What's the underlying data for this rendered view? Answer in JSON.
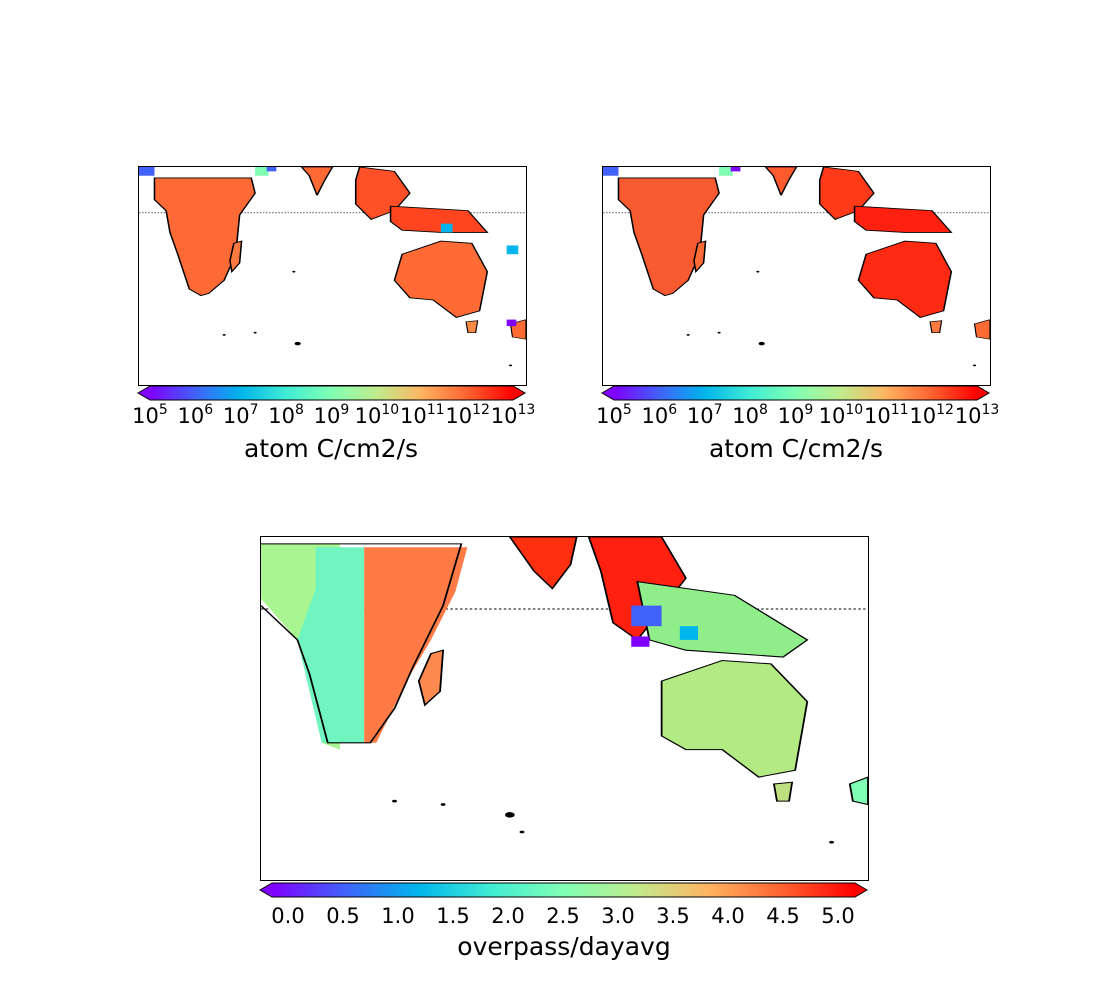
{
  "colors": {
    "colormap": [
      "#8000ff",
      "#4062fa",
      "#00b5eb",
      "#40ecd4",
      "#80ffb4",
      "#c0eb8d",
      "#ffb360",
      "#ff6230",
      "#ff0000"
    ],
    "land_outline": "#000000",
    "equator": "#000000"
  },
  "panels": [
    {
      "id": "top-left",
      "colorbar": {
        "scale": "log",
        "ticks": [
          {
            "base": "10",
            "exp": "5"
          },
          {
            "base": "10",
            "exp": "6"
          },
          {
            "base": "10",
            "exp": "7"
          },
          {
            "base": "10",
            "exp": "8"
          },
          {
            "base": "10",
            "exp": "9"
          },
          {
            "base": "10",
            "exp": "10"
          },
          {
            "base": "10",
            "exp": "11"
          },
          {
            "base": "10",
            "exp": "12"
          },
          {
            "base": "10",
            "exp": "13"
          }
        ],
        "label": "atom C/cm2/s",
        "extend": "both"
      }
    },
    {
      "id": "top-right",
      "colorbar": {
        "scale": "log",
        "ticks": [
          {
            "base": "10",
            "exp": "5"
          },
          {
            "base": "10",
            "exp": "6"
          },
          {
            "base": "10",
            "exp": "7"
          },
          {
            "base": "10",
            "exp": "8"
          },
          {
            "base": "10",
            "exp": "9"
          },
          {
            "base": "10",
            "exp": "10"
          },
          {
            "base": "10",
            "exp": "11"
          },
          {
            "base": "10",
            "exp": "12"
          },
          {
            "base": "10",
            "exp": "13"
          }
        ],
        "label": "atom C/cm2/s",
        "extend": "both"
      }
    },
    {
      "id": "bottom",
      "colorbar": {
        "scale": "linear",
        "ticks": [
          {
            "text": "0.0"
          },
          {
            "text": "0.5"
          },
          {
            "text": "1.0"
          },
          {
            "text": "1.5"
          },
          {
            "text": "2.0"
          },
          {
            "text": "2.5"
          },
          {
            "text": "3.0"
          },
          {
            "text": "3.5"
          },
          {
            "text": "4.0"
          },
          {
            "text": "4.5"
          },
          {
            "text": "5.0"
          }
        ],
        "label": "overpass/dayavg",
        "extend": "both"
      }
    }
  ]
}
